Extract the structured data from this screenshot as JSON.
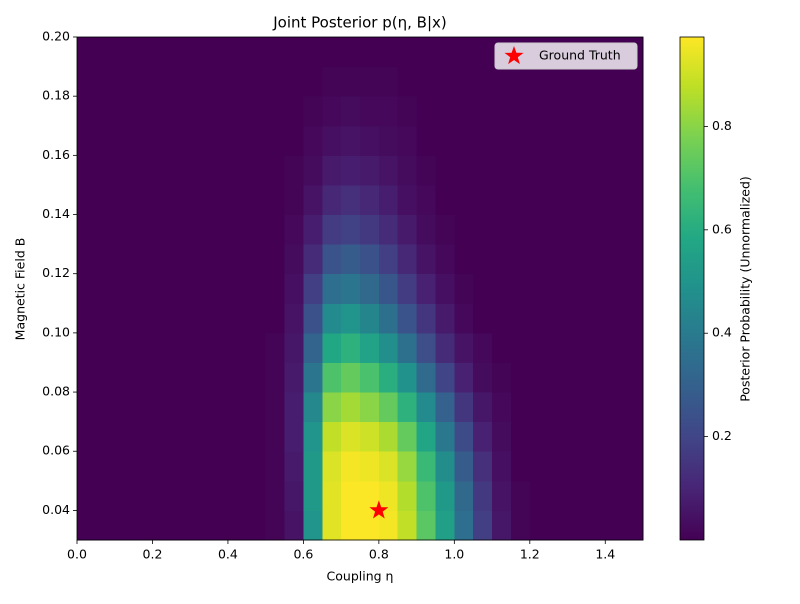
{
  "chart_data": {
    "type": "heatmap",
    "title": "Joint Posterior p(η, B|x)",
    "x_label": "Coupling η",
    "y_label": "Magnetic Field B",
    "colorbar_label": "Posterior Probability (Unnormalized)",
    "colormap": "viridis",
    "xbins": [
      0,
      0.05,
      0.1,
      0.15,
      0.2,
      0.25,
      0.3,
      0.35,
      0.4,
      0.45,
      0.5,
      0.55,
      0.6,
      0.65,
      0.7,
      0.75,
      0.8,
      0.85,
      0.9,
      0.95,
      1.0,
      1.05,
      1.1,
      1.15,
      1.2,
      1.25,
      1.3,
      1.35,
      1.4,
      1.45,
      1.5
    ],
    "ybins": [
      0.03,
      0.04,
      0.05,
      0.06,
      0.07,
      0.08,
      0.09,
      0.1,
      0.11,
      0.12,
      0.13,
      0.14,
      0.15,
      0.16,
      0.17,
      0.18,
      0.19,
      0.2
    ],
    "z": [
      [
        0,
        0,
        0,
        0,
        0,
        0,
        0,
        0,
        0,
        0,
        0.01,
        0.05,
        0.5,
        0.93,
        0.97,
        0.97,
        0.96,
        0.88,
        0.72,
        0.55,
        0.35,
        0.18,
        0.06,
        0.01,
        0,
        0,
        0,
        0,
        0,
        0
      ],
      [
        0,
        0,
        0,
        0,
        0,
        0,
        0,
        0,
        0,
        0,
        0.01,
        0.06,
        0.52,
        0.93,
        0.97,
        0.97,
        0.95,
        0.86,
        0.7,
        0.52,
        0.33,
        0.16,
        0.05,
        0.01,
        0,
        0,
        0,
        0,
        0,
        0
      ],
      [
        0,
        0,
        0,
        0,
        0,
        0,
        0,
        0,
        0,
        0,
        0.01,
        0.07,
        0.52,
        0.92,
        0.96,
        0.95,
        0.92,
        0.82,
        0.65,
        0.47,
        0.28,
        0.13,
        0.04,
        0,
        0,
        0,
        0,
        0,
        0,
        0
      ],
      [
        0,
        0,
        0,
        0,
        0,
        0,
        0,
        0,
        0,
        0,
        0.01,
        0.08,
        0.5,
        0.88,
        0.92,
        0.9,
        0.85,
        0.74,
        0.57,
        0.39,
        0.22,
        0.09,
        0.03,
        0,
        0,
        0,
        0,
        0,
        0,
        0
      ],
      [
        0,
        0,
        0,
        0,
        0,
        0,
        0,
        0,
        0,
        0,
        0.01,
        0.08,
        0.45,
        0.8,
        0.84,
        0.8,
        0.74,
        0.62,
        0.46,
        0.3,
        0.15,
        0.06,
        0.02,
        0,
        0,
        0,
        0,
        0,
        0,
        0
      ],
      [
        0,
        0,
        0,
        0,
        0,
        0,
        0,
        0,
        0,
        0,
        0.01,
        0.07,
        0.38,
        0.7,
        0.74,
        0.69,
        0.61,
        0.49,
        0.34,
        0.2,
        0.09,
        0.03,
        0.01,
        0,
        0,
        0,
        0,
        0,
        0,
        0
      ],
      [
        0,
        0,
        0,
        0,
        0,
        0,
        0,
        0,
        0,
        0,
        0.01,
        0.06,
        0.31,
        0.58,
        0.62,
        0.56,
        0.48,
        0.36,
        0.23,
        0.12,
        0.05,
        0.02,
        0,
        0,
        0,
        0,
        0,
        0,
        0,
        0
      ],
      [
        0,
        0,
        0,
        0,
        0,
        0,
        0,
        0,
        0,
        0,
        0,
        0.05,
        0.24,
        0.46,
        0.5,
        0.44,
        0.36,
        0.25,
        0.15,
        0.07,
        0.02,
        0,
        0,
        0,
        0,
        0,
        0,
        0,
        0,
        0
      ],
      [
        0,
        0,
        0,
        0,
        0,
        0,
        0,
        0,
        0,
        0,
        0,
        0.04,
        0.18,
        0.35,
        0.38,
        0.33,
        0.26,
        0.17,
        0.09,
        0.04,
        0.01,
        0,
        0,
        0,
        0,
        0,
        0,
        0,
        0,
        0
      ],
      [
        0,
        0,
        0,
        0,
        0,
        0,
        0,
        0,
        0,
        0,
        0,
        0.03,
        0.12,
        0.25,
        0.28,
        0.24,
        0.18,
        0.11,
        0.05,
        0.02,
        0,
        0,
        0,
        0,
        0,
        0,
        0,
        0,
        0,
        0
      ],
      [
        0,
        0,
        0,
        0,
        0,
        0,
        0,
        0,
        0,
        0,
        0,
        0.02,
        0.08,
        0.17,
        0.19,
        0.16,
        0.12,
        0.07,
        0.03,
        0.01,
        0,
        0,
        0,
        0,
        0,
        0,
        0,
        0,
        0,
        0
      ],
      [
        0,
        0,
        0,
        0,
        0,
        0,
        0,
        0,
        0,
        0,
        0,
        0.01,
        0.05,
        0.11,
        0.13,
        0.11,
        0.08,
        0.04,
        0.02,
        0,
        0,
        0,
        0,
        0,
        0,
        0,
        0,
        0,
        0,
        0
      ],
      [
        0,
        0,
        0,
        0,
        0,
        0,
        0,
        0,
        0,
        0,
        0,
        0.01,
        0.03,
        0.07,
        0.08,
        0.07,
        0.05,
        0.03,
        0.01,
        0,
        0,
        0,
        0,
        0,
        0,
        0,
        0,
        0,
        0,
        0
      ],
      [
        0,
        0,
        0,
        0,
        0,
        0,
        0,
        0,
        0,
        0,
        0,
        0,
        0.02,
        0.04,
        0.05,
        0.04,
        0.03,
        0.02,
        0,
        0,
        0,
        0,
        0,
        0,
        0,
        0,
        0,
        0,
        0,
        0
      ],
      [
        0,
        0,
        0,
        0,
        0,
        0,
        0,
        0,
        0,
        0,
        0,
        0,
        0.01,
        0.02,
        0.03,
        0.02,
        0.02,
        0.01,
        0,
        0,
        0,
        0,
        0,
        0,
        0,
        0,
        0,
        0,
        0,
        0
      ],
      [
        0,
        0,
        0,
        0,
        0,
        0,
        0,
        0,
        0,
        0,
        0,
        0,
        0,
        0.01,
        0.01,
        0.01,
        0.01,
        0,
        0,
        0,
        0,
        0,
        0,
        0,
        0,
        0,
        0,
        0,
        0,
        0
      ],
      [
        0,
        0,
        0,
        0,
        0,
        0,
        0,
        0,
        0,
        0,
        0,
        0,
        0,
        0,
        0,
        0,
        0,
        0,
        0,
        0,
        0,
        0,
        0,
        0,
        0,
        0,
        0,
        0,
        0,
        0
      ]
    ],
    "markers": [
      {
        "name": "Ground Truth",
        "x": 0.8,
        "y": 0.04,
        "color": "#ff0000"
      }
    ],
    "legend": "upper right",
    "xlim": [
      0,
      1.5
    ],
    "ylim": [
      0.03,
      0.2
    ],
    "clim": [
      0,
      0.973
    ],
    "xticks": [
      {
        "value": 0,
        "label": "0.0"
      },
      0.2,
      0.4,
      0.6,
      0.8,
      {
        "value": 1,
        "label": "1.0"
      },
      1.2,
      1.4
    ],
    "yticks": [
      0.04,
      0.06,
      0.08,
      {
        "value": 0.1,
        "label": "0.10"
      },
      0.12,
      0.14,
      0.16,
      0.18,
      {
        "value": 0.2,
        "label": "0.20"
      }
    ],
    "cticks": [
      0.2,
      0.4,
      0.6,
      0.8
    ]
  }
}
